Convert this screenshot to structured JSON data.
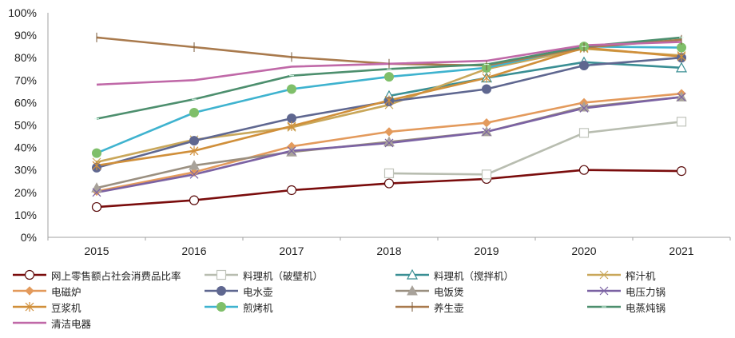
{
  "chart_data": {
    "type": "line",
    "title": "",
    "xlabel": "",
    "ylabel": "",
    "categories": [
      "2015",
      "2016",
      "2017",
      "2018",
      "2019",
      "2020",
      "2021"
    ],
    "ylim": [
      0,
      100
    ],
    "yticks": [
      "0%",
      "10%",
      "20%",
      "30%",
      "40%",
      "50%",
      "60%",
      "70%",
      "80%",
      "90%",
      "100%"
    ],
    "grid": false,
    "legend_position": "bottom",
    "series": [
      {
        "name": "网上零售额占社会消费品比率",
        "color": "#7a0c0c",
        "marker": "circle-open",
        "values": [
          13.5,
          16.5,
          21,
          24,
          26,
          30,
          29.5
        ]
      },
      {
        "name": "料理机（破壁机）",
        "color": "#b8bdb0",
        "marker": "square-open",
        "values": [
          null,
          null,
          null,
          28.5,
          28,
          46.5,
          51.5
        ]
      },
      {
        "name": "料理机（搅拌机）",
        "color": "#3a8f94",
        "marker": "triangle-open",
        "values": [
          null,
          null,
          null,
          63,
          71,
          78,
          75.5
        ]
      },
      {
        "name": "榨汁机",
        "color": "#c9a75a",
        "marker": "x",
        "values": [
          33.5,
          43.5,
          49,
          59,
          75,
          84,
          81
        ]
      },
      {
        "name": "电磁炉",
        "color": "#e39a5c",
        "marker": "diamond",
        "values": [
          20.5,
          29,
          40.5,
          47,
          51,
          60,
          64
        ]
      },
      {
        "name": "电水壶",
        "color": "#5f6790",
        "marker": "circle",
        "values": [
          31,
          43,
          53,
          60.5,
          66,
          76.5,
          80
        ]
      },
      {
        "name": "电饭煲",
        "color": "#9a8f80",
        "marker": "triangle",
        "values": [
          22,
          32,
          38,
          42.5,
          47,
          58,
          62.5
        ]
      },
      {
        "name": "电压力锅",
        "color": "#7b62a3",
        "marker": "x",
        "values": [
          20,
          28,
          38.5,
          42,
          47,
          57.5,
          62.5
        ]
      },
      {
        "name": "豆浆机",
        "color": "#d08f3a",
        "marker": "asterisk",
        "values": [
          32,
          38.5,
          49.5,
          61,
          71,
          84.5,
          80.5
        ]
      },
      {
        "name": "煎烤机",
        "color": "#3fb3cf",
        "marker": "circle-green",
        "values": [
          37.5,
          55.5,
          66,
          71.5,
          75.5,
          85,
          84.5
        ]
      },
      {
        "name": "养生壶",
        "color": "#a97a4d",
        "marker": "plus",
        "values": [
          89,
          84.7,
          80.3,
          77.3,
          76.5,
          84.5,
          88
        ]
      },
      {
        "name": "电蒸炖锅",
        "color": "#4d8f6e",
        "marker": "dash",
        "values": [
          52.8,
          61.5,
          72,
          75,
          77,
          85,
          89
        ]
      },
      {
        "name": "清洁电器",
        "color": "#c069a8",
        "marker": "none",
        "values": [
          68,
          70,
          76,
          77.3,
          78.6,
          85.5,
          87
        ]
      }
    ]
  }
}
